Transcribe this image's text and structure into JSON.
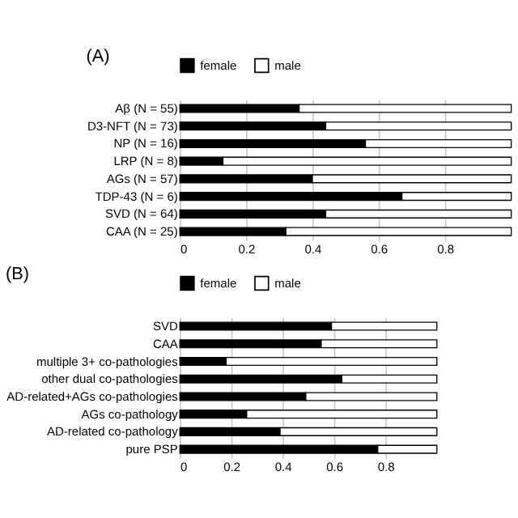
{
  "chart_data": [
    {
      "type": "bar",
      "title": "(A)",
      "orientation": "horizontal",
      "stacked": true,
      "legend": "top",
      "grid": "x",
      "xlim": [
        0,
        1
      ],
      "xticks": [
        0,
        0.2,
        0.4,
        0.6,
        0.8
      ],
      "categories": [
        "Aβ (N = 55)",
        "D3-NFT (N = 73)",
        "NP (N = 16)",
        "LRP (N = 8)",
        "AGs (N = 57)",
        "TDP-43 (N = 6)",
        "SVD (N = 64)",
        "CAA (N = 25)"
      ],
      "series": [
        {
          "name": "female",
          "color": "#000000",
          "values": [
            0.36,
            0.44,
            0.56,
            0.13,
            0.4,
            0.67,
            0.44,
            0.32
          ]
        },
        {
          "name": "male",
          "color": "#ffffff",
          "values": [
            0.64,
            0.56,
            0.44,
            0.87,
            0.6,
            0.33,
            0.56,
            0.68
          ]
        }
      ]
    },
    {
      "type": "bar",
      "title": "(B)",
      "orientation": "horizontal",
      "stacked": true,
      "legend": "top",
      "grid": "x",
      "xlim": [
        0,
        1
      ],
      "xticks": [
        0,
        0.2,
        0.4,
        0.6,
        0.8
      ],
      "categories": [
        "SVD",
        "CAA",
        "multiple 3+ co-pathologies",
        "other dual co-pathologies",
        "AD-related+AGs co-pathologies",
        "AGs co-pathology",
        "AD-related co-pathology",
        "pure PSP"
      ],
      "series": [
        {
          "name": "female",
          "color": "#000000",
          "values": [
            0.59,
            0.55,
            0.18,
            0.63,
            0.49,
            0.26,
            0.39,
            0.77
          ]
        },
        {
          "name": "male",
          "color": "#ffffff",
          "values": [
            0.41,
            0.45,
            0.82,
            0.37,
            0.51,
            0.74,
            0.61,
            0.23
          ]
        }
      ]
    }
  ]
}
